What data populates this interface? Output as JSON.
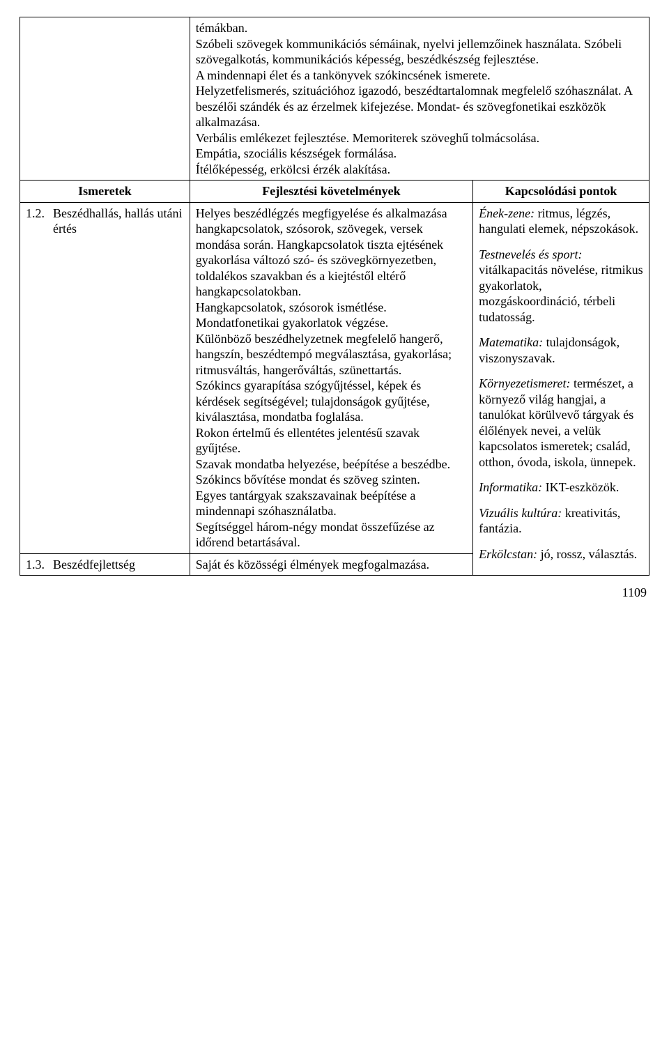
{
  "intro": {
    "l1": "témákban.",
    "l2": "Szóbeli szövegek kommunikációs sémáinak, nyelvi jellemzőinek használata. Szóbeli szövegalkotás, kommunikációs képesség, beszédkészség fejlesztése.",
    "l3": "A mindennapi élet és a tankönyvek szókincsének ismerete.",
    "l4": "Helyzetfelismerés, szituációhoz igazodó, beszédtartalomnak megfelelő szóhasználat. A beszélői szándék és az érzelmek kifejezése. Mondat- és szövegfonetikai eszközök alkalmazása.",
    "l5": "Verbális emlékezet fejlesztése. Memoriterek szöveghű tolmácsolása.",
    "l6": "Empátia, szociális készségek formálása.",
    "l7": "Ítélőképesség, erkölcsi érzék alakítása."
  },
  "headers": {
    "c1": "Ismeretek",
    "c2": "Fejlesztési követelmények",
    "c3": "Kapcsolódási pontok"
  },
  "row12": {
    "num": "1.2.",
    "title": "Beszédhallás, hallás utáni értés",
    "dev": {
      "p1": "Helyes beszédlégzés megfigyelése és alkalmazása hangkapcsolatok, szósorok, szövegek, versek mondása során. Hangkapcsolatok tiszta ejtésének gyakorlása változó szó- és szövegkörnyezetben, toldalékos szavakban és a kiejtéstől eltérő hangkapcsolatokban.",
      "p2": "Hangkapcsolatok, szósorok ismétlése.",
      "p3": "Mondatfonetikai gyakorlatok végzése.",
      "p4": "Különböző beszédhelyzetnek megfelelő hangerő, hangszín, beszédtempó megválasztása, gyakorlása; ritmusváltás, hangerőváltás, szünettartás.",
      "p5": "Szókincs gyarapítása szógyűjtéssel, képek és kérdések segítségével; tulajdonságok gyűjtése, kiválasztása, mondatba foglalása.",
      "p6": "Rokon értelmű és ellentétes jelentésű szavak gyűjtése.",
      "p7": "Szavak mondatba helyezése, beépítése a beszédbe.",
      "p8": "Szókincs bővítése mondat és szöveg szinten.",
      "p9": "Egyes tantárgyak szakszavainak beépítése a mindennapi szóhasználatba.",
      "p10": "Segítséggel három-négy mondat összefűzése az időrend betartásával."
    },
    "links": {
      "g1_subj": "Ének-zene:",
      "g1_body": " ritmus, légzés, hangulati elemek, népszokások.",
      "g2_subj": "Testnevelés és sport:",
      "g2_body": " vitálkapacitás növelése, ritmikus gyakorlatok, mozgáskoordináció, térbeli tudatosság.",
      "g3_subj": "Matematika:",
      "g3_body": " tulajdonságok, viszonyszavak.",
      "g4_subj": "Környezetismeret:",
      "g4_body": " természet, a környező világ hangjai, a tanulókat körülvevő tárgyak és élőlények nevei, a velük kapcsolatos ismeretek; család, otthon, óvoda, iskola, ünnepek.",
      "g5_subj": "Informatika:",
      "g5_body": " IKT-eszközök.",
      "g6_subj": "Vizuális kultúra:",
      "g6_body": " kreativitás, fantázia.",
      "g7_subj": "Erkölcstan:",
      "g7_body": " jó, rossz, választás."
    }
  },
  "row13": {
    "num": "1.3.",
    "title": "Beszédfejlettség",
    "dev": "Saját és közösségi élmények megfogalmazása."
  },
  "pageNumber": "1109"
}
